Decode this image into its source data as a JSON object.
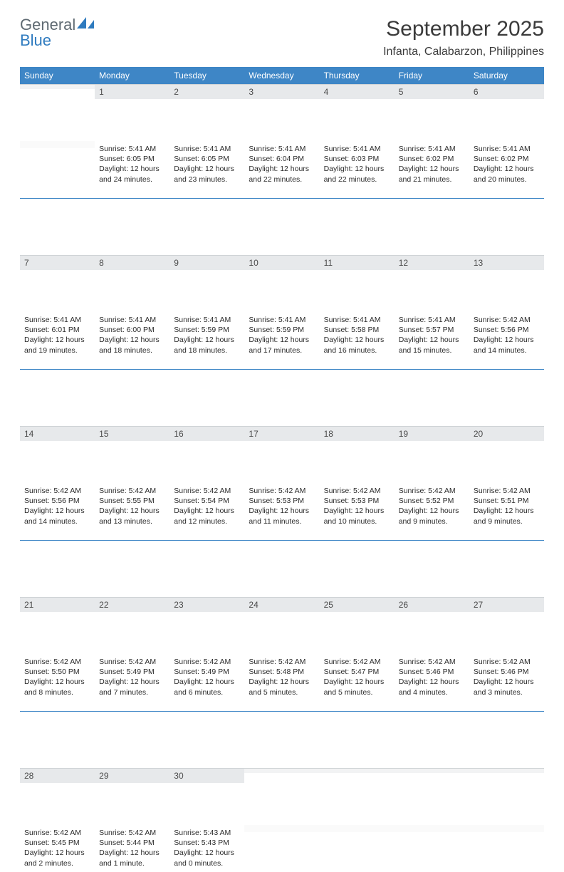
{
  "brand": {
    "word1": "General",
    "word2": "Blue",
    "color_gray": "#5f6a72",
    "color_blue": "#2f7bbf"
  },
  "title": "September 2025",
  "location": "Infanta, Calabarzon, Philippines",
  "header_bg": "#3e86c6",
  "daynum_bg": "#e7e9eb",
  "weekdays": [
    "Sunday",
    "Monday",
    "Tuesday",
    "Wednesday",
    "Thursday",
    "Friday",
    "Saturday"
  ],
  "weeks": [
    [
      {
        "n": "",
        "l": [
          "",
          "",
          "",
          ""
        ]
      },
      {
        "n": "1",
        "l": [
          "Sunrise: 5:41 AM",
          "Sunset: 6:05 PM",
          "Daylight: 12 hours",
          "and 24 minutes."
        ]
      },
      {
        "n": "2",
        "l": [
          "Sunrise: 5:41 AM",
          "Sunset: 6:05 PM",
          "Daylight: 12 hours",
          "and 23 minutes."
        ]
      },
      {
        "n": "3",
        "l": [
          "Sunrise: 5:41 AM",
          "Sunset: 6:04 PM",
          "Daylight: 12 hours",
          "and 22 minutes."
        ]
      },
      {
        "n": "4",
        "l": [
          "Sunrise: 5:41 AM",
          "Sunset: 6:03 PM",
          "Daylight: 12 hours",
          "and 22 minutes."
        ]
      },
      {
        "n": "5",
        "l": [
          "Sunrise: 5:41 AM",
          "Sunset: 6:02 PM",
          "Daylight: 12 hours",
          "and 21 minutes."
        ]
      },
      {
        "n": "6",
        "l": [
          "Sunrise: 5:41 AM",
          "Sunset: 6:02 PM",
          "Daylight: 12 hours",
          "and 20 minutes."
        ]
      }
    ],
    [
      {
        "n": "7",
        "l": [
          "Sunrise: 5:41 AM",
          "Sunset: 6:01 PM",
          "Daylight: 12 hours",
          "and 19 minutes."
        ]
      },
      {
        "n": "8",
        "l": [
          "Sunrise: 5:41 AM",
          "Sunset: 6:00 PM",
          "Daylight: 12 hours",
          "and 18 minutes."
        ]
      },
      {
        "n": "9",
        "l": [
          "Sunrise: 5:41 AM",
          "Sunset: 5:59 PM",
          "Daylight: 12 hours",
          "and 18 minutes."
        ]
      },
      {
        "n": "10",
        "l": [
          "Sunrise: 5:41 AM",
          "Sunset: 5:59 PM",
          "Daylight: 12 hours",
          "and 17 minutes."
        ]
      },
      {
        "n": "11",
        "l": [
          "Sunrise: 5:41 AM",
          "Sunset: 5:58 PM",
          "Daylight: 12 hours",
          "and 16 minutes."
        ]
      },
      {
        "n": "12",
        "l": [
          "Sunrise: 5:41 AM",
          "Sunset: 5:57 PM",
          "Daylight: 12 hours",
          "and 15 minutes."
        ]
      },
      {
        "n": "13",
        "l": [
          "Sunrise: 5:42 AM",
          "Sunset: 5:56 PM",
          "Daylight: 12 hours",
          "and 14 minutes."
        ]
      }
    ],
    [
      {
        "n": "14",
        "l": [
          "Sunrise: 5:42 AM",
          "Sunset: 5:56 PM",
          "Daylight: 12 hours",
          "and 14 minutes."
        ]
      },
      {
        "n": "15",
        "l": [
          "Sunrise: 5:42 AM",
          "Sunset: 5:55 PM",
          "Daylight: 12 hours",
          "and 13 minutes."
        ]
      },
      {
        "n": "16",
        "l": [
          "Sunrise: 5:42 AM",
          "Sunset: 5:54 PM",
          "Daylight: 12 hours",
          "and 12 minutes."
        ]
      },
      {
        "n": "17",
        "l": [
          "Sunrise: 5:42 AM",
          "Sunset: 5:53 PM",
          "Daylight: 12 hours",
          "and 11 minutes."
        ]
      },
      {
        "n": "18",
        "l": [
          "Sunrise: 5:42 AM",
          "Sunset: 5:53 PM",
          "Daylight: 12 hours",
          "and 10 minutes."
        ]
      },
      {
        "n": "19",
        "l": [
          "Sunrise: 5:42 AM",
          "Sunset: 5:52 PM",
          "Daylight: 12 hours",
          "and 9 minutes."
        ]
      },
      {
        "n": "20",
        "l": [
          "Sunrise: 5:42 AM",
          "Sunset: 5:51 PM",
          "Daylight: 12 hours",
          "and 9 minutes."
        ]
      }
    ],
    [
      {
        "n": "21",
        "l": [
          "Sunrise: 5:42 AM",
          "Sunset: 5:50 PM",
          "Daylight: 12 hours",
          "and 8 minutes."
        ]
      },
      {
        "n": "22",
        "l": [
          "Sunrise: 5:42 AM",
          "Sunset: 5:49 PM",
          "Daylight: 12 hours",
          "and 7 minutes."
        ]
      },
      {
        "n": "23",
        "l": [
          "Sunrise: 5:42 AM",
          "Sunset: 5:49 PM",
          "Daylight: 12 hours",
          "and 6 minutes."
        ]
      },
      {
        "n": "24",
        "l": [
          "Sunrise: 5:42 AM",
          "Sunset: 5:48 PM",
          "Daylight: 12 hours",
          "and 5 minutes."
        ]
      },
      {
        "n": "25",
        "l": [
          "Sunrise: 5:42 AM",
          "Sunset: 5:47 PM",
          "Daylight: 12 hours",
          "and 5 minutes."
        ]
      },
      {
        "n": "26",
        "l": [
          "Sunrise: 5:42 AM",
          "Sunset: 5:46 PM",
          "Daylight: 12 hours",
          "and 4 minutes."
        ]
      },
      {
        "n": "27",
        "l": [
          "Sunrise: 5:42 AM",
          "Sunset: 5:46 PM",
          "Daylight: 12 hours",
          "and 3 minutes."
        ]
      }
    ],
    [
      {
        "n": "28",
        "l": [
          "Sunrise: 5:42 AM",
          "Sunset: 5:45 PM",
          "Daylight: 12 hours",
          "and 2 minutes."
        ]
      },
      {
        "n": "29",
        "l": [
          "Sunrise: 5:42 AM",
          "Sunset: 5:44 PM",
          "Daylight: 12 hours",
          "and 1 minute."
        ]
      },
      {
        "n": "30",
        "l": [
          "Sunrise: 5:43 AM",
          "Sunset: 5:43 PM",
          "Daylight: 12 hours",
          "and 0 minutes."
        ]
      },
      {
        "n": "",
        "l": [
          "",
          "",
          "",
          ""
        ]
      },
      {
        "n": "",
        "l": [
          "",
          "",
          "",
          ""
        ]
      },
      {
        "n": "",
        "l": [
          "",
          "",
          "",
          ""
        ]
      },
      {
        "n": "",
        "l": [
          "",
          "",
          "",
          ""
        ]
      }
    ]
  ]
}
